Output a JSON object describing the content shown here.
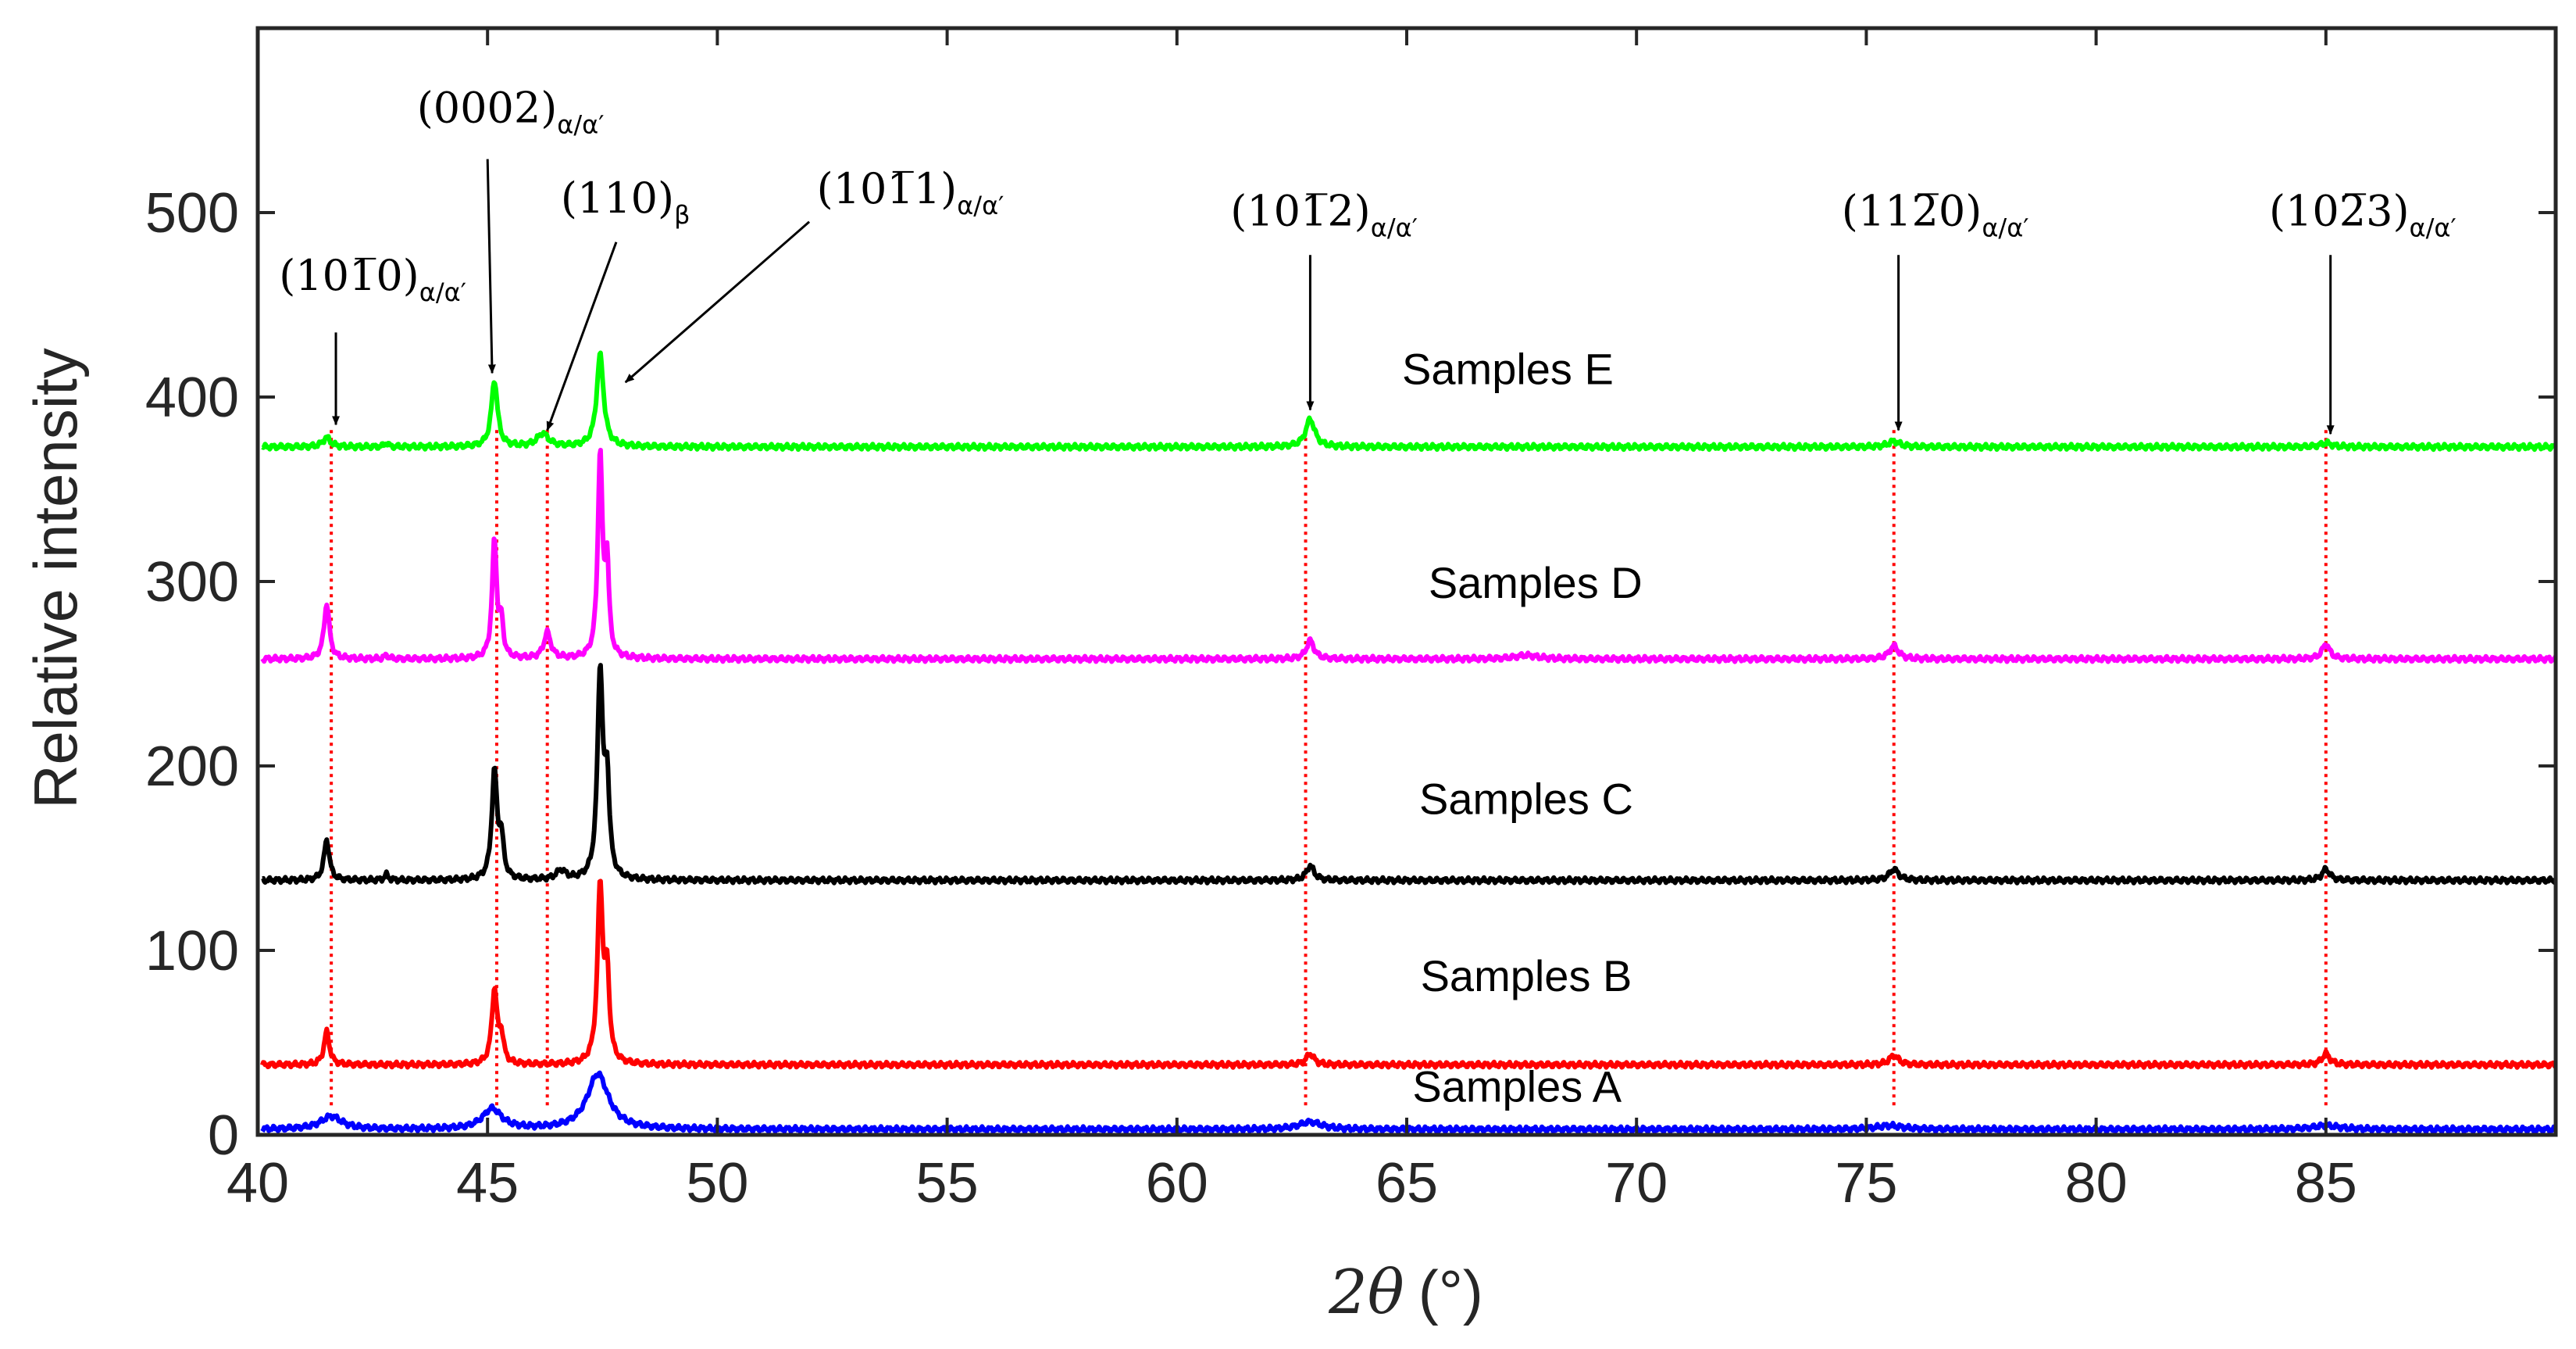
{
  "chart_data": {
    "type": "line",
    "title": "",
    "xlabel_symbol": "2θ",
    "xlabel_unit": "(°)",
    "ylabel": "Relative intensity",
    "xlim": [
      40,
      90
    ],
    "ylim": [
      0,
      600
    ],
    "xticks": [
      40,
      45,
      50,
      55,
      60,
      65,
      70,
      75,
      80,
      85
    ],
    "yticks": [
      0,
      100,
      200,
      300,
      400,
      500
    ],
    "grid": false,
    "series": [
      {
        "name": "Samples A",
        "color": "#0000ff",
        "baseline": 3,
        "peaks": [
          {
            "x": 41.6,
            "h": 7,
            "w": 0.28
          },
          {
            "x": 45.1,
            "h": 11,
            "w": 0.25
          },
          {
            "x": 47.4,
            "h": 30,
            "w": 0.28
          },
          {
            "x": 62.9,
            "h": 4,
            "w": 0.3
          },
          {
            "x": 75.5,
            "h": 2,
            "w": 0.35
          },
          {
            "x": 85.0,
            "h": 2,
            "w": 0.35
          }
        ]
      },
      {
        "name": "Samples B",
        "color": "#ff0000",
        "baseline": 38,
        "peaks": [
          {
            "x": 41.5,
            "h": 18,
            "w": 0.07
          },
          {
            "x": 45.15,
            "h": 40,
            "w": 0.07
          },
          {
            "x": 45.3,
            "h": 14,
            "w": 0.06
          },
          {
            "x": 47.45,
            "h": 95,
            "w": 0.07
          },
          {
            "x": 47.6,
            "h": 45,
            "w": 0.06
          },
          {
            "x": 62.9,
            "h": 6,
            "w": 0.1
          },
          {
            "x": 75.6,
            "h": 5,
            "w": 0.12
          },
          {
            "x": 85.0,
            "h": 6,
            "w": 0.1
          }
        ]
      },
      {
        "name": "Samples C",
        "color": "#000000",
        "baseline": 138,
        "peaks": [
          {
            "x": 41.5,
            "h": 22,
            "w": 0.07
          },
          {
            "x": 42.8,
            "h": 3,
            "w": 0.05
          },
          {
            "x": 45.15,
            "h": 58,
            "w": 0.07
          },
          {
            "x": 45.3,
            "h": 20,
            "w": 0.06
          },
          {
            "x": 46.6,
            "h": 5,
            "w": 0.12
          },
          {
            "x": 47.45,
            "h": 112,
            "w": 0.07
          },
          {
            "x": 47.6,
            "h": 50,
            "w": 0.06
          },
          {
            "x": 62.9,
            "h": 8,
            "w": 0.1
          },
          {
            "x": 75.6,
            "h": 6,
            "w": 0.12
          },
          {
            "x": 85.0,
            "h": 6,
            "w": 0.1
          }
        ]
      },
      {
        "name": "Samples D",
        "color": "#ff00ff",
        "baseline": 258,
        "peaks": [
          {
            "x": 41.5,
            "h": 30,
            "w": 0.07
          },
          {
            "x": 42.8,
            "h": 2,
            "w": 0.05
          },
          {
            "x": 45.15,
            "h": 64,
            "w": 0.06
          },
          {
            "x": 45.3,
            "h": 18,
            "w": 0.05
          },
          {
            "x": 46.3,
            "h": 14,
            "w": 0.09
          },
          {
            "x": 47.45,
            "h": 110,
            "w": 0.06
          },
          {
            "x": 47.6,
            "h": 48,
            "w": 0.05
          },
          {
            "x": 62.9,
            "h": 10,
            "w": 0.1
          },
          {
            "x": 67.6,
            "h": 2,
            "w": 0.3
          },
          {
            "x": 75.6,
            "h": 7,
            "w": 0.12
          },
          {
            "x": 85.0,
            "h": 8,
            "w": 0.1
          }
        ]
      },
      {
        "name": "Samples E",
        "color": "#00ff00",
        "baseline": 373,
        "peaks": [
          {
            "x": 41.5,
            "h": 5,
            "w": 0.1
          },
          {
            "x": 42.8,
            "h": 2,
            "w": 0.05
          },
          {
            "x": 45.15,
            "h": 36,
            "w": 0.08
          },
          {
            "x": 46.2,
            "h": 7,
            "w": 0.15
          },
          {
            "x": 47.45,
            "h": 50,
            "w": 0.09
          },
          {
            "x": 62.9,
            "h": 15,
            "w": 0.12
          },
          {
            "x": 75.6,
            "h": 3,
            "w": 0.15
          },
          {
            "x": 85.0,
            "h": 2,
            "w": 0.15
          }
        ]
      }
    ],
    "series_labels": [
      {
        "text": "Samples A",
        "x": 67.4,
        "y": 18
      },
      {
        "text": "Samples B",
        "x": 67.6,
        "y": 78
      },
      {
        "text": "Samples C",
        "x": 67.6,
        "y": 174
      },
      {
        "text": "Samples D",
        "x": 67.8,
        "y": 291
      },
      {
        "text": "Samples E",
        "x": 67.2,
        "y": 407
      }
    ],
    "reference_lines": {
      "color": "#ff0000",
      "style": "dotted",
      "x": [
        41.6,
        45.2,
        46.3,
        62.8,
        75.6,
        85.0
      ],
      "y_from": 16,
      "y_to": 383
    },
    "peak_annotations": [
      {
        "hkl": "(101̅0)",
        "phase": "α/α′",
        "text_x": 42.5,
        "text_y": 458,
        "tip_x": 41.7,
        "tip_y": 385,
        "tail_x": 41.7,
        "tail_y": 435
      },
      {
        "hkl": "(0002)",
        "phase": "α/α′",
        "text_x": 45.5,
        "text_y": 549,
        "tip_x": 45.1,
        "tip_y": 413,
        "tail_x": 45.0,
        "tail_y": 529
      },
      {
        "hkl": "(110)",
        "phase": "β",
        "text_x": 48.0,
        "text_y": 500,
        "tip_x": 46.3,
        "tip_y": 382,
        "tail_x": 47.8,
        "tail_y": 484
      },
      {
        "hkl": "(101̅1)",
        "phase": "α/α′",
        "text_x": 54.2,
        "text_y": 505,
        "tip_x": 48.0,
        "tip_y": 408,
        "tail_x": 52.0,
        "tail_y": 495
      },
      {
        "hkl": "(101̅2)",
        "phase": "α/α′",
        "text_x": 63.2,
        "text_y": 493,
        "tip_x": 62.9,
        "tip_y": 393,
        "tail_x": 62.9,
        "tail_y": 477
      },
      {
        "hkl": "(112̅0)",
        "phase": "α/α′",
        "text_x": 76.5,
        "text_y": 493,
        "tip_x": 75.7,
        "tip_y": 382,
        "tail_x": 75.7,
        "tail_y": 477
      },
      {
        "hkl": "(102̅3)",
        "phase": "α/α′",
        "text_x": 85.8,
        "text_y": 493,
        "tip_x": 85.1,
        "tip_y": 380,
        "tail_x": 85.1,
        "tail_y": 477
      }
    ]
  }
}
